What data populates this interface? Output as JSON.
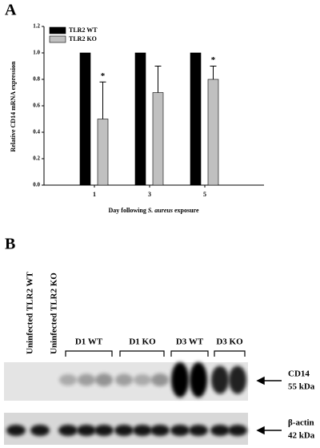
{
  "panel_labels": [
    "A",
    "B"
  ],
  "chart_data": {
    "type": "bar",
    "ylabel": "Relative CD14 mRNA expression",
    "xlabel_parts": [
      "Day following ",
      "S. aureus",
      " exposure"
    ],
    "categories": [
      "1",
      "3",
      "5"
    ],
    "series": [
      {
        "name": "TLR2 WT",
        "color": "#000000",
        "values": [
          1.0,
          1.0,
          1.0
        ]
      },
      {
        "name": "TLR2 KO",
        "color": "#c0c0c0",
        "values": [
          0.5,
          0.7,
          0.8
        ],
        "errors": [
          0.28,
          0.2,
          0.1
        ]
      }
    ],
    "significance": [
      "*",
      null,
      "*"
    ],
    "ylim": [
      0,
      1.2
    ],
    "yticks": [
      {
        "value": 0,
        "label": "0.0"
      },
      0.2,
      0.4,
      0.6,
      0.8,
      {
        "value": 1,
        "label": "1.0"
      },
      1.2
    ],
    "legend": "top-left"
  },
  "blot": {
    "lanes": [
      "Uninfected TLR2 WT",
      "Uninfected TLR2 KO"
    ],
    "groups": [
      "D1 WT",
      "D1 KO",
      "D3 WT",
      "D3 KO"
    ],
    "bands": [
      {
        "name": "CD14",
        "size": "55 kDa"
      },
      {
        "name": "β-actin",
        "size": "42 kDa"
      }
    ]
  }
}
